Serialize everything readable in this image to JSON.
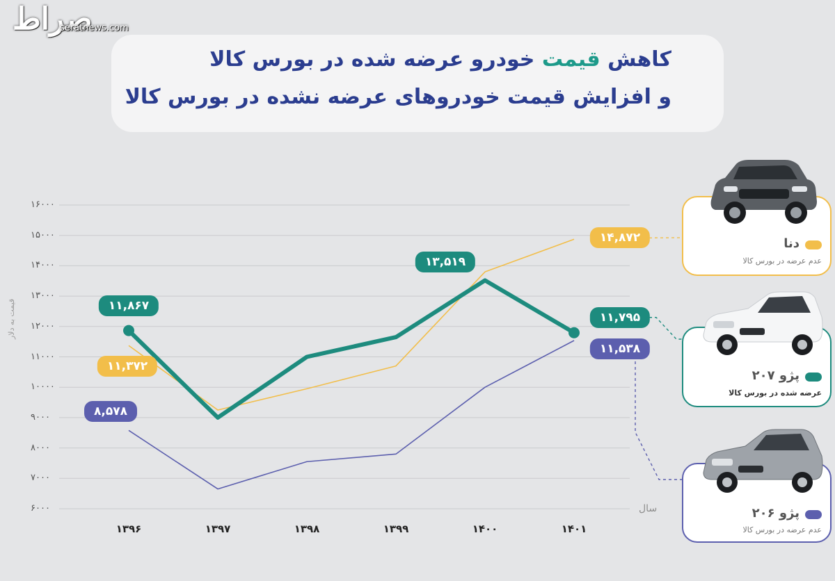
{
  "watermark": {
    "logo": "صراط",
    "url": "seratnews.com"
  },
  "title": {
    "line1_part1": "کاهش ",
    "line1_highlight": "قیمت",
    "line1_part2": " خودرو عرضه شده در بورس کالا",
    "line2": "و افزایش قیمت خودروهای عرضه نشده در بورس کالا"
  },
  "colors": {
    "teal": "#1d8b7e",
    "yellow": "#f2be4a",
    "purple": "#5c5fae",
    "navy": "#2b3d8f"
  },
  "legend": [
    {
      "name": "دنا",
      "sub": "عدم عرضه در بورس کالا",
      "color": "#f2be4a",
      "icon": "sedan-car-icon"
    },
    {
      "name": "پژو ۲۰۷",
      "sub": "عرضه شده در بورس کالا",
      "color": "#1d8b7e",
      "icon": "hatchback-white-car-icon"
    },
    {
      "name": "پژو ۲۰۶",
      "sub": "عدم عرضه در بورس کالا",
      "color": "#5c5fae",
      "icon": "hatchback-grey-car-icon"
    }
  ],
  "chart_data": {
    "type": "line",
    "ylabel": "قیمت به دلار",
    "xlabel": "سال",
    "ylim": [
      6000,
      16000
    ],
    "yticks": [
      16000,
      15000,
      14000,
      13000,
      12000,
      11000,
      10000,
      9000,
      8000,
      7000,
      6000
    ],
    "ytick_labels": [
      "۱۶۰۰۰",
      "۱۵۰۰۰",
      "۱۴۰۰۰",
      "۱۳۰۰۰",
      "۱۲۰۰۰",
      "۱۱۰۰۰",
      "۱۰۰۰۰",
      "۹۰۰۰",
      "۸۰۰۰",
      "۷۰۰۰",
      "۶۰۰۰"
    ],
    "categories": [
      "۱۳۹۶",
      "۱۳۹۷",
      "۱۳۹۸",
      "۱۳۹۹",
      "۱۴۰۰",
      "۱۴۰۱"
    ],
    "grid": true,
    "series": [
      {
        "name": "دنا",
        "color": "#f2be4a",
        "values": [
          11372,
          9250,
          9950,
          10700,
          13800,
          14872
        ],
        "labels": [
          {
            "index": 0,
            "text": "۱۱,۳۷۲"
          },
          {
            "index": 5,
            "text": "۱۴,۸۷۲"
          }
        ]
      },
      {
        "name": "پژو ۲۰۷",
        "color": "#1d8b7e",
        "values": [
          11867,
          9000,
          11000,
          11650,
          13519,
          11795
        ],
        "labels": [
          {
            "index": 0,
            "text": "۱۱,۸۶۷"
          },
          {
            "index": 4,
            "text": "۱۳,۵۱۹"
          },
          {
            "index": 5,
            "text": "۱۱,۷۹۵"
          }
        ]
      },
      {
        "name": "پژو ۲۰۶",
        "color": "#5c5fae",
        "values": [
          8578,
          6650,
          7550,
          7800,
          10000,
          11538
        ],
        "labels": [
          {
            "index": 0,
            "text": "۸,۵۷۸"
          },
          {
            "index": 5,
            "text": "۱۱,۵۳۸"
          }
        ]
      }
    ]
  }
}
